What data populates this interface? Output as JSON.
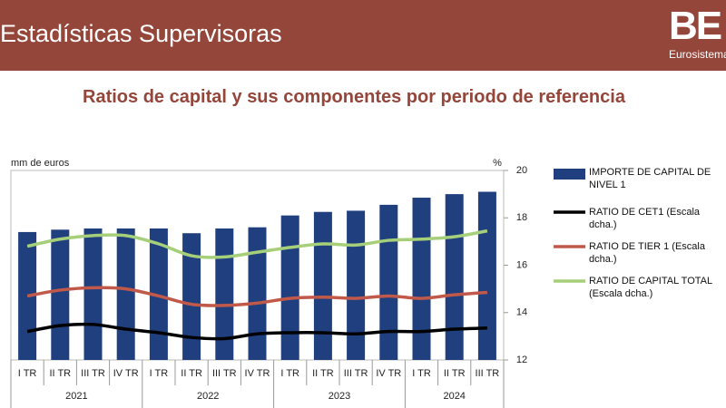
{
  "header": {
    "title": "Estadísticas Supervisoras",
    "logo": "BE",
    "logo_sub": "Eurosistema"
  },
  "chart_data": {
    "type": "bar_line",
    "title": "Ratios de capital y sus componentes por periodo de referencia",
    "y_label": "mm de euros",
    "y2_label": "%",
    "categories": [
      "I TR",
      "II TR",
      "III TR",
      "IV TR",
      "I TR",
      "II TR",
      "III TR",
      "IV TR",
      "I TR",
      "II TR",
      "III TR",
      "IV TR",
      "I TR",
      "II TR",
      "III TR"
    ],
    "group_labels": [
      "2021",
      "2022",
      "2023",
      "2024"
    ],
    "ylim": [
      12,
      20
    ],
    "y2lim": [
      12,
      20
    ],
    "y2ticks": [
      12,
      14,
      16,
      18,
      20
    ],
    "series": [
      {
        "name": "IMPORTE DE CAPITAL DE NIVEL 1",
        "color": "#1f3f7f",
        "kind": "bar",
        "axis": "y",
        "values": [
          17.4,
          17.5,
          17.55,
          17.55,
          17.55,
          17.35,
          17.55,
          17.6,
          18.1,
          18.25,
          18.3,
          18.55,
          18.85,
          19.0,
          19.1
        ]
      },
      {
        "name": "RATIO DE CET1 (Escala dcha.)",
        "color": "#000000",
        "kind": "line",
        "axis": "y2",
        "values": [
          13.2,
          13.45,
          13.5,
          13.3,
          13.15,
          12.95,
          12.9,
          13.1,
          13.15,
          13.15,
          13.1,
          13.2,
          13.2,
          13.3,
          13.35
        ]
      },
      {
        "name": "RATIO DE TIER 1 (Escala dcha.)",
        "color": "#c0594a",
        "kind": "line",
        "axis": "y2",
        "values": [
          14.7,
          14.95,
          15.05,
          15.0,
          14.7,
          14.35,
          14.3,
          14.4,
          14.6,
          14.65,
          14.6,
          14.7,
          14.6,
          14.75,
          14.85
        ]
      },
      {
        "name": "RATIO DE CAPITAL TOTAL (Escala dcha.)",
        "color": "#a6cf7a",
        "kind": "line",
        "axis": "y2",
        "values": [
          16.8,
          17.1,
          17.25,
          17.25,
          16.9,
          16.4,
          16.35,
          16.55,
          16.75,
          16.9,
          16.85,
          17.05,
          17.1,
          17.2,
          17.45
        ]
      }
    ]
  }
}
